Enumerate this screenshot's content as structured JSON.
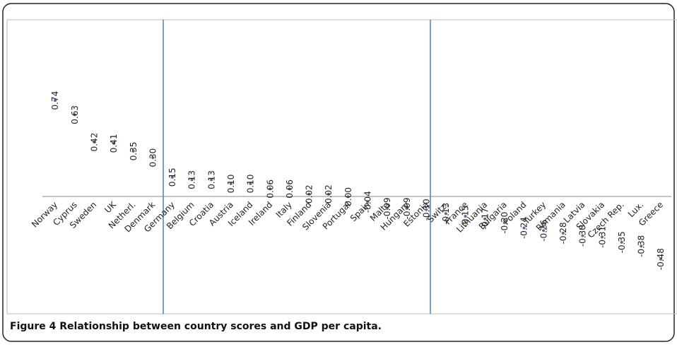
{
  "chart_data": {
    "type": "scatter",
    "caption": "Figure 4 Relationship between country scores and GDP per capita.",
    "categories": [
      "Norway",
      "Cyprus",
      "Sweden",
      "UK",
      "Netherl.",
      "Denmark",
      "Germany",
      "Belgium",
      "Croatia",
      "Austria",
      "Iceland",
      "Ireland",
      "Italy",
      "Finland",
      "Slovenia",
      "Portugal",
      "Spain",
      "Malta",
      "Hungary",
      "Estonia",
      "Switz.",
      "France",
      "Lithuania",
      "Bulgaria",
      "Poland",
      "Turkey",
      "Romania",
      "Latvia",
      "Slovakia",
      "Czech Rep.",
      "Lux.",
      "Greece"
    ],
    "values": [
      0.74,
      0.63,
      0.42,
      0.41,
      0.35,
      0.3,
      0.15,
      0.13,
      0.13,
      0.1,
      0.1,
      0.06,
      0.06,
      0.02,
      0.02,
      0.0,
      -0.04,
      -0.09,
      -0.09,
      -0.1,
      -0.13,
      -0.15,
      -0.17,
      -0.2,
      -0.24,
      -0.26,
      -0.28,
      -0.3,
      -0.31,
      -0.35,
      -0.38,
      -0.48
    ],
    "value_labels": [
      "0.74",
      "0.63",
      "0.42",
      "0.41",
      "0.35",
      "0.30",
      "0.15",
      "0.13",
      "0.13",
      "0.10",
      "0.10",
      "0.06",
      "0.06",
      "0.02",
      "0.02",
      "0.00",
      "-0.04",
      "-0.09",
      "-0.09",
      "-0.10",
      "-0.13",
      "-0.15",
      "-0.17",
      "-0.20",
      "-0.24",
      "-0.26",
      "-0.28",
      "-0.30",
      "-0.31",
      "-0.35",
      "-0.38",
      "-0.48"
    ],
    "color": "#7a5a9a",
    "ylim": [
      -0.9,
      1.36
    ]
  }
}
